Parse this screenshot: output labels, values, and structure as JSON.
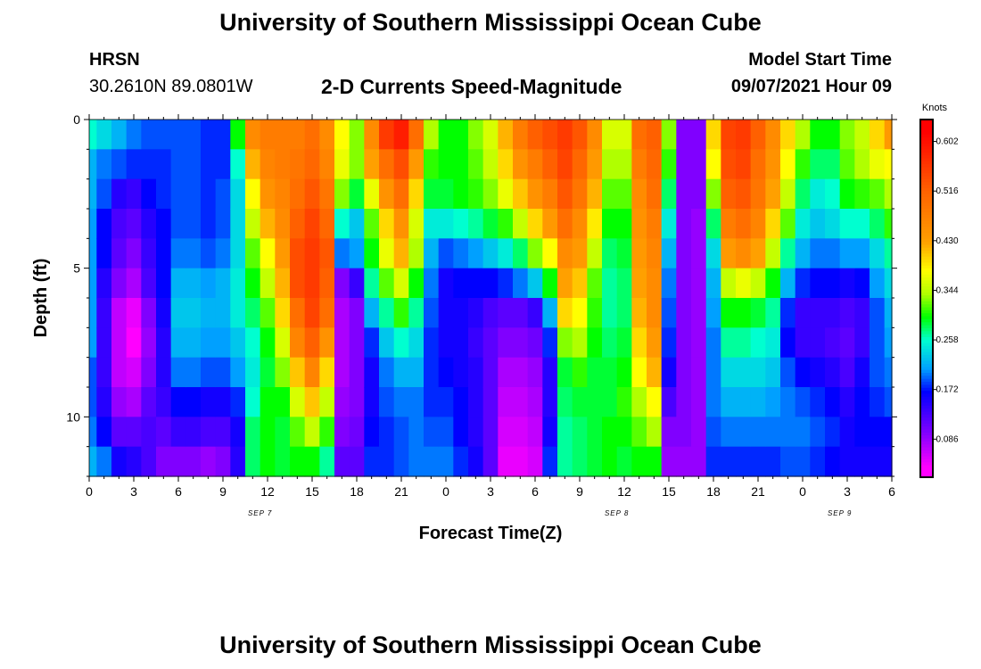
{
  "header": {
    "title": "University of Southern Mississippi Ocean Cube",
    "footer_title": "University of Southern Mississippi Ocean Cube",
    "station": "HRSN",
    "coords": "30.2610N  89.0801W",
    "subtitle": "2-D Currents Speed-Magnitude",
    "model_label": "Model Start Time",
    "model_time": "09/07/2021 Hour 09"
  },
  "chart_data": {
    "type": "heatmap",
    "title": "2-D Currents Speed-Magnitude",
    "xlabel": "Forecast Time(Z)",
    "ylabel": "Depth (ft)",
    "x_hours": [
      0,
      1,
      2,
      3,
      4,
      5,
      6,
      7,
      8,
      9,
      10,
      11,
      12,
      13,
      14,
      15,
      16,
      17,
      18,
      19,
      20,
      21,
      22,
      23,
      24,
      25,
      26,
      27,
      28,
      29,
      30,
      31,
      32,
      33,
      34,
      35,
      36,
      37,
      38,
      39,
      40,
      41,
      42,
      43,
      44,
      45,
      46,
      47,
      48,
      49,
      50,
      51,
      52,
      53,
      54
    ],
    "xlim_hours": [
      0,
      54
    ],
    "x_ticks": [
      "0",
      "3",
      "6",
      "9",
      "12",
      "15",
      "18",
      "21",
      "0",
      "3",
      "6",
      "9",
      "12",
      "15",
      "18",
      "21",
      "0",
      "3",
      "6"
    ],
    "date_labels": [
      {
        "label": "SEP 7",
        "hour": 11.5
      },
      {
        "label": "SEP 8",
        "hour": 35.5
      },
      {
        "label": "SEP 9",
        "hour": 50.5
      }
    ],
    "y_ticks": [
      "0",
      "5",
      "10"
    ],
    "ylim_ft": [
      12,
      0
    ],
    "depths_ft": [
      0.5,
      1.5,
      2.5,
      3.5,
      4.5,
      5.5,
      6.5,
      7.5,
      8.5,
      9.5,
      10.5,
      11.5
    ],
    "colorbar": {
      "unit": "Knots",
      "labels": [
        "0.602",
        "0.516",
        "0.430",
        "0.344",
        "0.258",
        "0.172",
        "0.086"
      ],
      "min": 0.02,
      "max": 0.64
    },
    "colormap": [
      {
        "v": 0.04,
        "color": "#ff00ff"
      },
      {
        "v": 0.1,
        "color": "#8000ff"
      },
      {
        "v": 0.17,
        "color": "#0000ff"
      },
      {
        "v": 0.21,
        "color": "#00a0ff"
      },
      {
        "v": 0.26,
        "color": "#00ffd0"
      },
      {
        "v": 0.3,
        "color": "#00ff00"
      },
      {
        "v": 0.34,
        "color": "#b0ff00"
      },
      {
        "v": 0.38,
        "color": "#ffff00"
      },
      {
        "v": 0.43,
        "color": "#ffa000"
      },
      {
        "v": 0.52,
        "color": "#ff6000"
      },
      {
        "v": 0.62,
        "color": "#ff0000"
      }
    ],
    "profiles": [
      [
        0,
        [
          0.26,
          0.22,
          0.22,
          0.21,
          0.21,
          0.21,
          0.21,
          0.21,
          0.19,
          0.19,
          0.2,
          0.22
        ]
      ],
      [
        1,
        [
          0.24,
          0.2,
          0.19,
          0.17,
          0.17,
          0.15,
          0.14,
          0.14,
          0.14,
          0.15,
          0.17,
          0.2
        ]
      ],
      [
        2,
        [
          0.22,
          0.19,
          0.15,
          0.13,
          0.12,
          0.1,
          0.07,
          0.07,
          0.07,
          0.09,
          0.12,
          0.16
        ]
      ],
      [
        3,
        [
          0.2,
          0.18,
          0.14,
          0.12,
          0.1,
          0.08,
          0.05,
          0.04,
          0.06,
          0.08,
          0.12,
          0.15
        ]
      ],
      [
        4,
        [
          0.19,
          0.18,
          0.17,
          0.15,
          0.14,
          0.13,
          0.1,
          0.09,
          0.1,
          0.12,
          0.13,
          0.13
        ]
      ],
      [
        5,
        [
          0.19,
          0.18,
          0.18,
          0.17,
          0.17,
          0.17,
          0.16,
          0.15,
          0.15,
          0.14,
          0.12,
          0.1
        ]
      ],
      [
        6,
        [
          0.19,
          0.19,
          0.19,
          0.19,
          0.2,
          0.22,
          0.23,
          0.22,
          0.2,
          0.17,
          0.14,
          0.1
        ]
      ],
      [
        7,
        [
          0.19,
          0.19,
          0.19,
          0.19,
          0.2,
          0.22,
          0.23,
          0.22,
          0.2,
          0.17,
          0.14,
          0.1
        ]
      ],
      [
        8,
        [
          0.18,
          0.18,
          0.18,
          0.18,
          0.19,
          0.21,
          0.22,
          0.21,
          0.19,
          0.16,
          0.13,
          0.09
        ]
      ],
      [
        9,
        [
          0.18,
          0.18,
          0.19,
          0.19,
          0.2,
          0.22,
          0.22,
          0.21,
          0.19,
          0.16,
          0.13,
          0.1
        ]
      ],
      [
        10,
        [
          0.3,
          0.26,
          0.24,
          0.24,
          0.24,
          0.25,
          0.25,
          0.23,
          0.21,
          0.18,
          0.16,
          0.15
        ]
      ],
      [
        11,
        [
          0.46,
          0.42,
          0.38,
          0.35,
          0.32,
          0.3,
          0.28,
          0.26,
          0.25,
          0.26,
          0.28,
          0.28
        ]
      ],
      [
        12,
        [
          0.48,
          0.47,
          0.45,
          0.42,
          0.38,
          0.35,
          0.32,
          0.3,
          0.29,
          0.3,
          0.3,
          0.3
        ]
      ],
      [
        13,
        [
          0.48,
          0.48,
          0.47,
          0.46,
          0.44,
          0.42,
          0.4,
          0.36,
          0.33,
          0.3,
          0.29,
          0.29
        ]
      ],
      [
        14,
        [
          0.48,
          0.49,
          0.5,
          0.52,
          0.54,
          0.54,
          0.5,
          0.47,
          0.41,
          0.36,
          0.32,
          0.3
        ]
      ],
      [
        15,
        [
          0.5,
          0.51,
          0.53,
          0.55,
          0.56,
          0.56,
          0.55,
          0.52,
          0.47,
          0.41,
          0.35,
          0.3
        ]
      ],
      [
        16,
        [
          0.46,
          0.47,
          0.49,
          0.51,
          0.53,
          0.52,
          0.5,
          0.45,
          0.4,
          0.35,
          0.31,
          0.27
        ]
      ],
      [
        17,
        [
          0.38,
          0.37,
          0.33,
          0.26,
          0.2,
          0.1,
          0.08,
          0.08,
          0.08,
          0.09,
          0.1,
          0.12
        ]
      ],
      [
        18,
        [
          0.33,
          0.33,
          0.29,
          0.23,
          0.21,
          0.14,
          0.1,
          0.1,
          0.1,
          0.1,
          0.11,
          0.12
        ]
      ],
      [
        19,
        [
          0.46,
          0.43,
          0.37,
          0.32,
          0.3,
          0.27,
          0.22,
          0.18,
          0.16,
          0.16,
          0.17,
          0.18
        ]
      ],
      [
        20,
        [
          0.56,
          0.5,
          0.45,
          0.4,
          0.37,
          0.32,
          0.27,
          0.23,
          0.2,
          0.19,
          0.18,
          0.18
        ]
      ],
      [
        21,
        [
          0.59,
          0.54,
          0.5,
          0.45,
          0.42,
          0.36,
          0.31,
          0.26,
          0.22,
          0.2,
          0.19,
          0.19
        ]
      ],
      [
        22,
        [
          0.5,
          0.44,
          0.4,
          0.36,
          0.34,
          0.3,
          0.27,
          0.24,
          0.22,
          0.2,
          0.2,
          0.2
        ]
      ],
      [
        23,
        [
          0.34,
          0.31,
          0.29,
          0.25,
          0.22,
          0.2,
          0.19,
          0.18,
          0.18,
          0.18,
          0.19,
          0.2
        ]
      ],
      [
        24,
        [
          0.3,
          0.3,
          0.29,
          0.25,
          0.19,
          0.16,
          0.16,
          0.16,
          0.17,
          0.18,
          0.19,
          0.2
        ]
      ],
      [
        25,
        [
          0.3,
          0.3,
          0.3,
          0.26,
          0.2,
          0.17,
          0.16,
          0.16,
          0.16,
          0.17,
          0.17,
          0.18
        ]
      ],
      [
        26,
        [
          0.33,
          0.32,
          0.31,
          0.27,
          0.21,
          0.17,
          0.15,
          0.14,
          0.15,
          0.15,
          0.15,
          0.16
        ]
      ],
      [
        27,
        [
          0.36,
          0.35,
          0.33,
          0.29,
          0.23,
          0.17,
          0.13,
          0.12,
          0.12,
          0.12,
          0.12,
          0.12
        ]
      ],
      [
        28,
        [
          0.42,
          0.4,
          0.37,
          0.31,
          0.25,
          0.18,
          0.12,
          0.1,
          0.08,
          0.07,
          0.06,
          0.05
        ]
      ],
      [
        29,
        [
          0.48,
          0.45,
          0.41,
          0.35,
          0.28,
          0.2,
          0.12,
          0.1,
          0.08,
          0.07,
          0.06,
          0.05
        ]
      ],
      [
        30,
        [
          0.52,
          0.48,
          0.45,
          0.4,
          0.33,
          0.23,
          0.14,
          0.11,
          0.09,
          0.08,
          0.07,
          0.06
        ]
      ],
      [
        31,
        [
          0.54,
          0.52,
          0.48,
          0.44,
          0.38,
          0.3,
          0.22,
          0.18,
          0.15,
          0.15,
          0.16,
          0.18
        ]
      ],
      [
        32,
        [
          0.56,
          0.55,
          0.53,
          0.5,
          0.46,
          0.43,
          0.4,
          0.33,
          0.29,
          0.28,
          0.27,
          0.27
        ]
      ],
      [
        33,
        [
          0.53,
          0.51,
          0.49,
          0.46,
          0.44,
          0.41,
          0.38,
          0.34,
          0.31,
          0.29,
          0.28,
          0.28
        ]
      ],
      [
        34,
        [
          0.46,
          0.44,
          0.42,
          0.39,
          0.35,
          0.32,
          0.31,
          0.3,
          0.29,
          0.29,
          0.29,
          0.29
        ]
      ],
      [
        35,
        [
          0.36,
          0.34,
          0.32,
          0.3,
          0.28,
          0.27,
          0.27,
          0.28,
          0.29,
          0.29,
          0.3,
          0.3
        ]
      ],
      [
        36,
        [
          0.36,
          0.34,
          0.32,
          0.3,
          0.29,
          0.28,
          0.28,
          0.29,
          0.3,
          0.31,
          0.3,
          0.29
        ]
      ],
      [
        37,
        [
          0.5,
          0.48,
          0.46,
          0.45,
          0.44,
          0.43,
          0.42,
          0.4,
          0.38,
          0.34,
          0.32,
          0.3
        ]
      ],
      [
        38,
        [
          0.52,
          0.51,
          0.5,
          0.48,
          0.47,
          0.46,
          0.46,
          0.44,
          0.42,
          0.38,
          0.34,
          0.3
        ]
      ],
      [
        39,
        [
          0.33,
          0.31,
          0.28,
          0.25,
          0.22,
          0.2,
          0.19,
          0.18,
          0.16,
          0.13,
          0.1,
          0.09
        ]
      ],
      [
        40,
        [
          0.1,
          0.1,
          0.1,
          0.1,
          0.1,
          0.1,
          0.1,
          0.1,
          0.1,
          0.1,
          0.1,
          0.09
        ]
      ],
      [
        41,
        [
          0.1,
          0.1,
          0.1,
          0.09,
          0.09,
          0.09,
          0.09,
          0.09,
          0.09,
          0.09,
          0.09,
          0.09
        ]
      ],
      [
        42,
        [
          0.4,
          0.38,
          0.33,
          0.28,
          0.24,
          0.22,
          0.21,
          0.2,
          0.2,
          0.2,
          0.19,
          0.18
        ]
      ],
      [
        43,
        [
          0.55,
          0.54,
          0.52,
          0.48,
          0.44,
          0.35,
          0.3,
          0.27,
          0.24,
          0.22,
          0.2,
          0.18
        ]
      ],
      [
        44,
        [
          0.56,
          0.55,
          0.53,
          0.5,
          0.46,
          0.37,
          0.3,
          0.27,
          0.24,
          0.22,
          0.2,
          0.18
        ]
      ],
      [
        45,
        [
          0.52,
          0.5,
          0.49,
          0.47,
          0.43,
          0.35,
          0.29,
          0.26,
          0.24,
          0.22,
          0.2,
          0.18
        ]
      ],
      [
        46,
        [
          0.46,
          0.45,
          0.43,
          0.4,
          0.35,
          0.3,
          0.27,
          0.25,
          0.23,
          0.21,
          0.2,
          0.18
        ]
      ],
      [
        47,
        [
          0.4,
          0.38,
          0.35,
          0.32,
          0.27,
          0.22,
          0.18,
          0.17,
          0.19,
          0.2,
          0.2,
          0.19
        ]
      ],
      [
        48,
        [
          0.34,
          0.31,
          0.28,
          0.25,
          0.22,
          0.18,
          0.14,
          0.14,
          0.17,
          0.19,
          0.2,
          0.19
        ]
      ],
      [
        49,
        [
          0.3,
          0.28,
          0.25,
          0.23,
          0.2,
          0.17,
          0.14,
          0.14,
          0.16,
          0.18,
          0.19,
          0.18
        ]
      ],
      [
        50,
        [
          0.3,
          0.28,
          0.26,
          0.24,
          0.2,
          0.17,
          0.14,
          0.13,
          0.15,
          0.17,
          0.18,
          0.17
        ]
      ],
      [
        51,
        [
          0.33,
          0.32,
          0.3,
          0.26,
          0.21,
          0.16,
          0.13,
          0.12,
          0.13,
          0.15,
          0.16,
          0.16
        ]
      ],
      [
        52,
        [
          0.35,
          0.34,
          0.31,
          0.26,
          0.21,
          0.17,
          0.14,
          0.14,
          0.16,
          0.17,
          0.17,
          0.16
        ]
      ],
      [
        53,
        [
          0.4,
          0.37,
          0.32,
          0.28,
          0.24,
          0.21,
          0.19,
          0.19,
          0.19,
          0.18,
          0.17,
          0.16
        ]
      ],
      [
        54,
        [
          0.44,
          0.38,
          0.34,
          0.31,
          0.27,
          0.24,
          0.22,
          0.21,
          0.2,
          0.19,
          0.17,
          0.16
        ]
      ]
    ]
  }
}
